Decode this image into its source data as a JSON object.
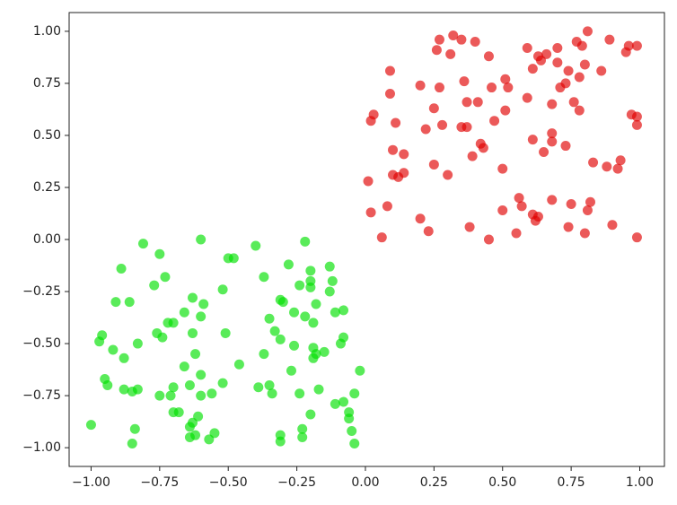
{
  "chart_data": {
    "type": "scatter",
    "xlim": [
      -1.08,
      1.09
    ],
    "ylim": [
      -1.09,
      1.09
    ],
    "xticks": [
      {
        "value": -1,
        "label": "−1.00"
      },
      {
        "value": -0.75,
        "label": "−0.75"
      },
      {
        "value": -0.5,
        "label": "−0.50"
      },
      {
        "value": -0.25,
        "label": "−0.25"
      },
      {
        "value": 0,
        "label": "0.00"
      },
      {
        "value": 0.25,
        "label": "0.25"
      },
      {
        "value": 0.5,
        "label": "0.50"
      },
      {
        "value": 0.75,
        "label": "0.75"
      },
      {
        "value": 1,
        "label": "1.00"
      }
    ],
    "yticks": [
      {
        "value": -1,
        "label": "−1.00"
      },
      {
        "value": -0.75,
        "label": "−0.75"
      },
      {
        "value": -0.5,
        "label": "−0.50"
      },
      {
        "value": -0.25,
        "label": "−0.25"
      },
      {
        "value": 0,
        "label": "0.00"
      },
      {
        "value": 0.25,
        "label": "0.25"
      },
      {
        "value": 0.5,
        "label": "0.50"
      },
      {
        "value": 0.75,
        "label": "0.75"
      },
      {
        "value": 1,
        "label": "1.00"
      }
    ],
    "series": [
      {
        "color": "#e00000",
        "x": [
          0.32,
          0.27,
          0.35,
          0.4,
          0.26,
          0.31,
          0.45,
          0.59,
          0.63,
          0.66,
          0.7,
          0.77,
          0.81,
          0.89,
          0.96,
          0.99,
          0.95,
          0.79,
          0.64,
          0.61,
          0.7,
          0.74,
          0.8,
          0.78,
          0.86,
          0.09,
          0.2,
          0.27,
          0.36,
          0.46,
          0.51,
          0.52,
          0.71,
          0.73,
          0.09,
          0.25,
          0.37,
          0.41,
          0.51,
          0.59,
          0.68,
          0.76,
          0.78,
          0.97,
          0.99,
          0.99,
          0.02,
          0.03,
          0.11,
          0.22,
          0.28,
          0.35,
          0.37,
          0.47,
          0.61,
          0.68,
          0.68,
          0.42,
          0.43,
          0.1,
          0.14,
          0.39,
          0.65,
          0.73,
          0.83,
          0.88,
          0.93,
          0.92,
          0.25,
          0.3,
          0.5,
          0.1,
          0.14,
          0.12,
          0.01,
          0.02,
          0.08,
          0.2,
          0.23,
          0.06,
          0.38,
          0.45,
          0.5,
          0.56,
          0.57,
          0.61,
          0.63,
          0.62,
          0.68,
          0.75,
          0.82,
          0.81,
          0.74,
          0.8,
          0.9,
          0.99,
          0.55
        ],
        "y": [
          0.98,
          0.96,
          0.96,
          0.95,
          0.91,
          0.89,
          0.88,
          0.92,
          0.88,
          0.89,
          0.92,
          0.95,
          1.0,
          0.96,
          0.93,
          0.93,
          0.9,
          0.93,
          0.86,
          0.82,
          0.85,
          0.81,
          0.84,
          0.78,
          0.81,
          0.81,
          0.74,
          0.73,
          0.76,
          0.73,
          0.77,
          0.73,
          0.73,
          0.75,
          0.7,
          0.63,
          0.66,
          0.66,
          0.62,
          0.68,
          0.65,
          0.66,
          0.62,
          0.6,
          0.59,
          0.55,
          0.57,
          0.6,
          0.56,
          0.53,
          0.55,
          0.54,
          0.54,
          0.57,
          0.48,
          0.51,
          0.47,
          0.46,
          0.44,
          0.43,
          0.41,
          0.4,
          0.42,
          0.45,
          0.37,
          0.35,
          0.38,
          0.34,
          0.36,
          0.31,
          0.34,
          0.31,
          0.32,
          0.3,
          0.28,
          0.13,
          0.16,
          0.1,
          0.04,
          0.01,
          0.06,
          0.0,
          0.14,
          0.2,
          0.16,
          0.12,
          0.11,
          0.09,
          0.19,
          0.17,
          0.18,
          0.14,
          0.06,
          0.03,
          0.07,
          0.01,
          0.03
        ]
      },
      {
        "color": "#00e000",
        "x": [
          -0.81,
          -0.6,
          -0.4,
          -0.22,
          -0.75,
          -0.48,
          -0.5,
          -0.89,
          -0.73,
          -0.77,
          -0.37,
          -0.28,
          -0.2,
          -0.13,
          -0.2,
          -0.2,
          -0.24,
          -0.12,
          -0.13,
          -0.52,
          -0.63,
          -0.91,
          -0.86,
          -0.31,
          -0.3,
          -0.18,
          -0.11,
          -0.08,
          -0.59,
          -0.66,
          -0.7,
          -0.72,
          -0.22,
          -0.26,
          -0.35,
          -0.19,
          -0.33,
          -0.6,
          -0.51,
          -0.63,
          -0.76,
          -0.74,
          -0.96,
          -0.97,
          -0.83,
          -0.92,
          -0.88,
          -0.62,
          -0.66,
          -0.6,
          -0.7,
          -0.71,
          -0.37,
          -0.26,
          -0.31,
          -0.19,
          -0.19,
          -0.18,
          -0.15,
          -0.09,
          -0.08,
          -0.52,
          -0.46,
          -0.27,
          -0.02,
          -0.95,
          -0.94,
          -0.88,
          -0.85,
          -0.83,
          -0.75,
          -0.64,
          -0.56,
          -0.6,
          -0.39,
          -0.35,
          -0.34,
          -0.24,
          -0.17,
          -0.11,
          -0.08,
          -0.04,
          -0.68,
          -0.7,
          -0.61,
          -0.2,
          -0.06,
          -1.0,
          -0.84,
          -0.63,
          -0.64,
          -0.62,
          -0.57,
          -0.64,
          -0.55,
          -0.31,
          -0.31,
          -0.23,
          -0.23,
          -0.06,
          -0.05,
          -0.04,
          -0.85
        ],
        "y": [
          -0.02,
          0.0,
          -0.03,
          -0.01,
          -0.07,
          -0.09,
          -0.09,
          -0.14,
          -0.18,
          -0.22,
          -0.18,
          -0.12,
          -0.15,
          -0.13,
          -0.2,
          -0.23,
          -0.22,
          -0.2,
          -0.25,
          -0.24,
          -0.28,
          -0.3,
          -0.3,
          -0.29,
          -0.3,
          -0.31,
          -0.35,
          -0.34,
          -0.31,
          -0.35,
          -0.4,
          -0.4,
          -0.37,
          -0.35,
          -0.38,
          -0.4,
          -0.44,
          -0.37,
          -0.45,
          -0.45,
          -0.45,
          -0.47,
          -0.46,
          -0.49,
          -0.5,
          -0.53,
          -0.57,
          -0.55,
          -0.61,
          -0.65,
          -0.71,
          -0.75,
          -0.55,
          -0.51,
          -0.48,
          -0.52,
          -0.57,
          -0.55,
          -0.54,
          -0.5,
          -0.47,
          -0.69,
          -0.6,
          -0.63,
          -0.63,
          -0.67,
          -0.7,
          -0.72,
          -0.73,
          -0.72,
          -0.75,
          -0.7,
          -0.74,
          -0.75,
          -0.71,
          -0.7,
          -0.74,
          -0.74,
          -0.72,
          -0.79,
          -0.78,
          -0.74,
          -0.83,
          -0.83,
          -0.85,
          -0.84,
          -0.83,
          -0.89,
          -0.91,
          -0.88,
          -0.9,
          -0.94,
          -0.96,
          -0.95,
          -0.93,
          -0.94,
          -0.97,
          -0.91,
          -0.95,
          -0.86,
          -0.92,
          -0.98,
          -0.98
        ]
      }
    ]
  }
}
